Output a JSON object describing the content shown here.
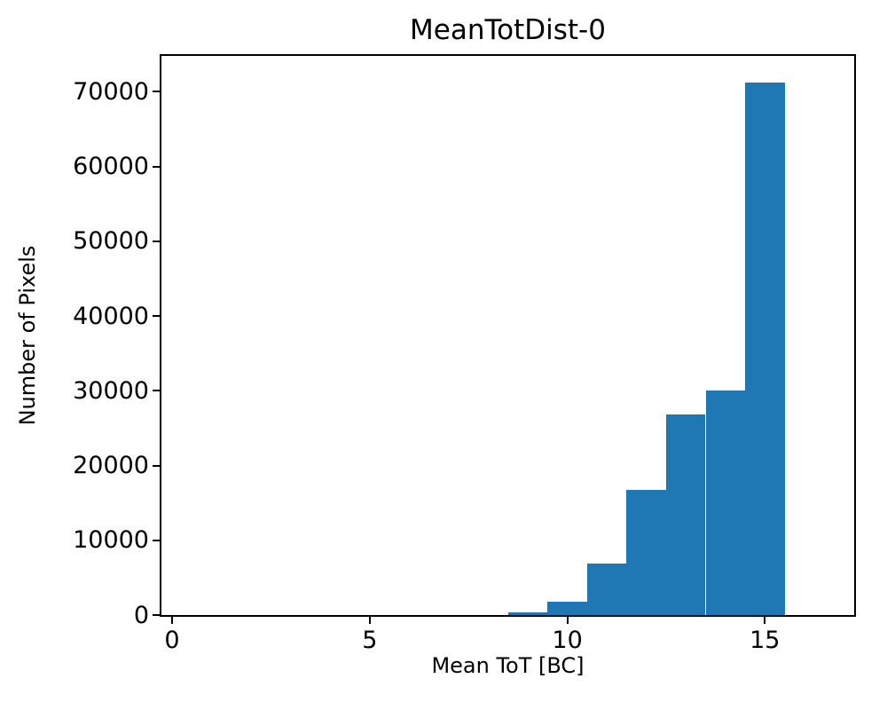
{
  "chart_data": {
    "type": "bar",
    "title": "MeanTotDist-0",
    "xlabel": "Mean ToT [BC]",
    "ylabel": "Number of Pixels",
    "bin_edges": [
      8.5,
      9.5,
      10.5,
      11.5,
      12.5,
      13.5,
      14.5,
      15.5
    ],
    "counts": [
      400,
      1800,
      6900,
      16700,
      26800,
      30100,
      71200
    ],
    "bar_color": "#1f77b4",
    "xlim": [
      -0.27,
      17.26
    ],
    "ylim": [
      0,
      74800
    ],
    "xticks": [
      0,
      5,
      10,
      15
    ],
    "yticks": [
      0,
      10000,
      20000,
      30000,
      40000,
      50000,
      60000,
      70000
    ],
    "grid": false,
    "legend_position": "none"
  }
}
